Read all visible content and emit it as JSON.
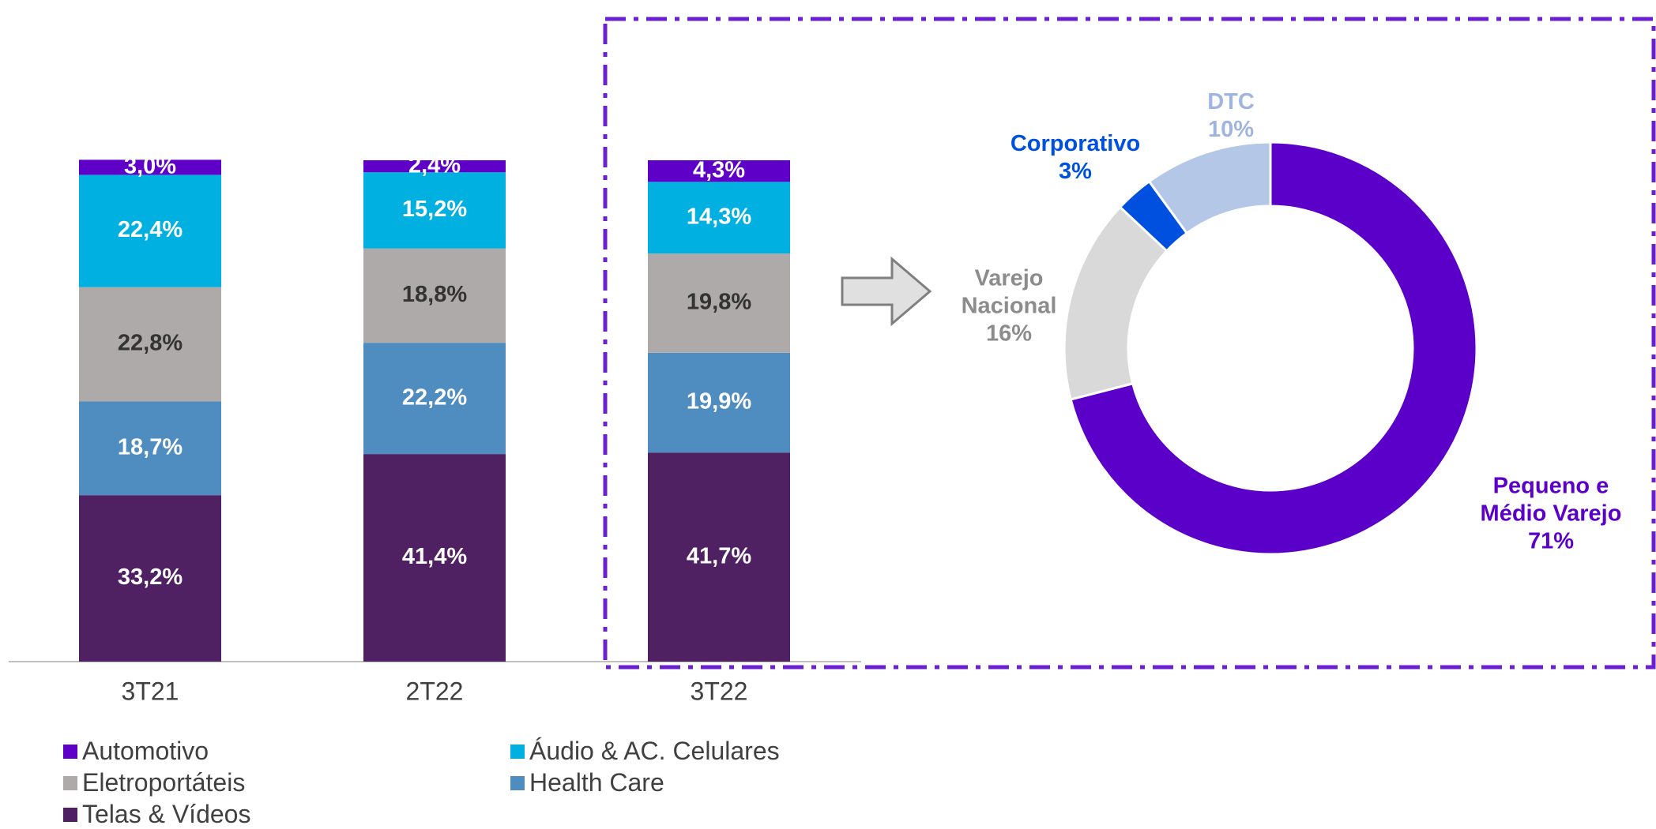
{
  "chart_data": [
    {
      "type": "stacked_bar",
      "categories": [
        "3T21",
        "2T22",
        "3T22"
      ],
      "series": [
        {
          "name": "Telas & Vídeos",
          "color": "#4f2163",
          "label_color": "#ffffff",
          "values": [
            33.2,
            41.4,
            41.7
          ],
          "value_labels": [
            "33,2%",
            "41,4%",
            "41,7%"
          ]
        },
        {
          "name": "Health Care",
          "color": "#4f8cbf",
          "label_color": "#ffffff",
          "values": [
            18.7,
            22.2,
            19.9
          ],
          "value_labels": [
            "18,7%",
            "22,2%",
            "19,9%"
          ]
        },
        {
          "name": "Eletroportáteis",
          "color": "#aeaaaa",
          "label_color": "#333333",
          "values": [
            22.8,
            18.8,
            19.8
          ],
          "value_labels": [
            "22,8%",
            "18,8%",
            "19,8%"
          ]
        },
        {
          "name": "Áudio & AC. Celulares",
          "color": "#00b0e0",
          "label_color": "#ffffff",
          "values": [
            22.4,
            15.2,
            14.3
          ],
          "value_labels": [
            "22,4%",
            "15,2%",
            "14,3%"
          ]
        },
        {
          "name": "Automotivo",
          "color": "#5f00c8",
          "label_color": "#ffffff",
          "values": [
            3.0,
            2.4,
            4.3
          ],
          "value_labels": [
            "3,0%",
            "2,4%",
            "4,3%"
          ]
        }
      ]
    },
    {
      "type": "donut",
      "categories": [
        "Pequeno e Médio Varejo",
        "Varejo Nacional",
        "Corporativo",
        "DTC"
      ],
      "values": [
        71,
        16,
        3,
        10
      ],
      "value_labels": [
        "71%",
        "16%",
        "3%",
        "10%"
      ],
      "colors": [
        "#5b00c8",
        "#d9d9d9",
        "#0050e0",
        "#b4c7e7"
      ],
      "label_colors": [
        "#5b00c8",
        "#8c8c8c",
        "#0050e0",
        "#a0b4e0"
      ]
    }
  ]
}
